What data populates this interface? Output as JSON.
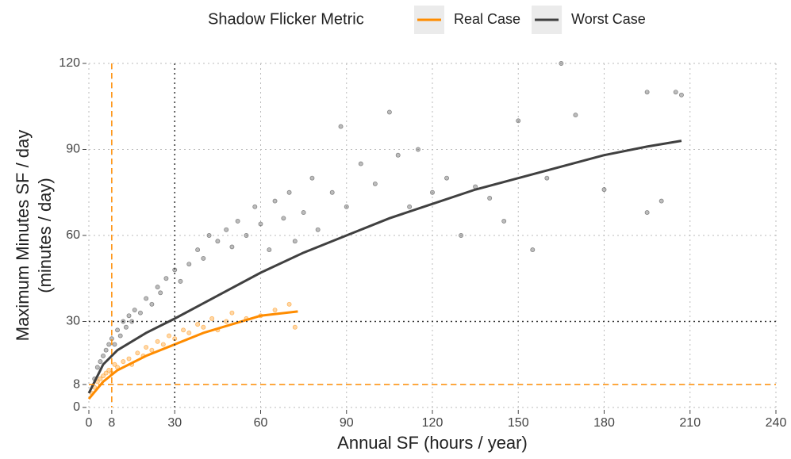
{
  "chart_data": {
    "type": "scatter",
    "legend_title": "Shadow Flicker Metric",
    "legend": "top",
    "x_label": "Annual SF (hours / year)",
    "y_label": [
      "Maximum Minutes SF / day",
      "(minutes / day)"
    ],
    "xlim": [
      0,
      240
    ],
    "ylim": [
      0,
      120
    ],
    "xticks": [
      0,
      8,
      30,
      60,
      90,
      120,
      150,
      180,
      210,
      240
    ],
    "yticks": [
      0,
      8,
      30,
      60,
      90,
      120
    ],
    "grid": true,
    "reference_lines": [
      {
        "axis": "x",
        "value": 8,
        "color": "#ff8c00",
        "style": "dashed"
      },
      {
        "axis": "y",
        "value": 8,
        "color": "#ff8c00",
        "style": "dashed"
      },
      {
        "axis": "x",
        "value": 30,
        "color": "#333333",
        "style": "dotted"
      },
      {
        "axis": "y",
        "value": 30,
        "color": "#333333",
        "style": "dotted"
      }
    ],
    "series": [
      {
        "name": "Worst Case",
        "color": "#404040",
        "x": [
          2,
          3,
          4,
          5,
          6,
          7,
          8,
          9,
          10,
          11,
          12,
          13,
          14,
          15,
          16,
          18,
          20,
          22,
          24,
          25,
          27,
          30,
          32,
          35,
          38,
          40,
          42,
          45,
          48,
          50,
          52,
          55,
          58,
          60,
          63,
          65,
          68,
          70,
          72,
          75,
          78,
          80,
          85,
          88,
          90,
          95,
          100,
          105,
          108,
          112,
          115,
          120,
          125,
          130,
          135,
          140,
          145,
          150,
          155,
          160,
          165,
          170,
          180,
          195,
          195,
          200,
          205,
          207
        ],
        "values": [
          10,
          14,
          16,
          18,
          20,
          22,
          24,
          22,
          27,
          25,
          30,
          28,
          32,
          30,
          34,
          33,
          38,
          36,
          42,
          40,
          45,
          48,
          44,
          50,
          55,
          52,
          60,
          58,
          62,
          56,
          65,
          60,
          70,
          64,
          55,
          72,
          66,
          75,
          58,
          68,
          80,
          62,
          75,
          98,
          70,
          85,
          78,
          103,
          88,
          70,
          90,
          75,
          80,
          60,
          77,
          73,
          65,
          100,
          55,
          80,
          120,
          102,
          76,
          110,
          68,
          72,
          110,
          109
        ],
        "trend_x": [
          0,
          5,
          10,
          20,
          30,
          45,
          60,
          75,
          90,
          105,
          120,
          135,
          150,
          165,
          180,
          195,
          207
        ],
        "trend_values": [
          5,
          15,
          20,
          26,
          31,
          39,
          47,
          54,
          60,
          66,
          71,
          76,
          80,
          84,
          88,
          91,
          93
        ]
      },
      {
        "name": "Real Case",
        "color": "#ff8c00",
        "x": [
          1,
          2,
          3,
          4,
          5,
          6,
          7,
          8,
          9,
          10,
          12,
          14,
          15,
          17,
          19,
          20,
          22,
          24,
          26,
          28,
          30,
          33,
          35,
          38,
          40,
          43,
          45,
          48,
          50,
          55,
          60,
          65,
          70,
          72
        ],
        "values": [
          5,
          7,
          9,
          10,
          11,
          12,
          13,
          12,
          15,
          14,
          16,
          17,
          15,
          19,
          18,
          21,
          20,
          23,
          22,
          25,
          24,
          27,
          26,
          29,
          28,
          31,
          27,
          30,
          33,
          31,
          32,
          34,
          36,
          28
        ],
        "trend_x": [
          0,
          5,
          10,
          20,
          30,
          40,
          50,
          60,
          73
        ],
        "trend_values": [
          3,
          9,
          13,
          18,
          22,
          26,
          29,
          32,
          33.5
        ]
      }
    ]
  }
}
